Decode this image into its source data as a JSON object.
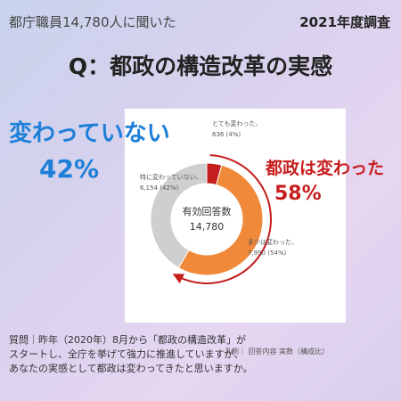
{
  "header": {
    "respondents_text": "都庁職員14,780人に聞いた",
    "survey_year": "2021年度調査",
    "title": "Q：都政の構造改革の実感"
  },
  "callouts": {
    "unchanged_label": "変わっていない",
    "unchanged_pct": "42%",
    "changed_label": "都政は変わった",
    "changed_pct": "58%"
  },
  "chart_data": {
    "type": "pie",
    "title": "",
    "center_label": "有効回答数",
    "center_value": "14,780",
    "slices": [
      {
        "label": "とても変わった、",
        "value": 636,
        "value_label": "636 (4%)",
        "color": "#c41e1e"
      },
      {
        "label": "多少は変わった、",
        "value": 7990,
        "value_label": "7,990 (54%)",
        "color": "#f08a3a"
      },
      {
        "label": "特に変わっていない、",
        "value": 6154,
        "value_label": "6,154 (42%)",
        "color": "#cfcfcf"
      }
    ]
  },
  "footer": {
    "question_lines": [
      "質問｜昨年（2020年）8月から「都政の構造改革」が",
      "スタートし、全庁を挙げて強力に推進していますが、",
      "あなたの実感として都政は変わってきたと思いますか。"
    ],
    "legend_note": "凡例｜ 回答内容 実数（構成比）"
  }
}
